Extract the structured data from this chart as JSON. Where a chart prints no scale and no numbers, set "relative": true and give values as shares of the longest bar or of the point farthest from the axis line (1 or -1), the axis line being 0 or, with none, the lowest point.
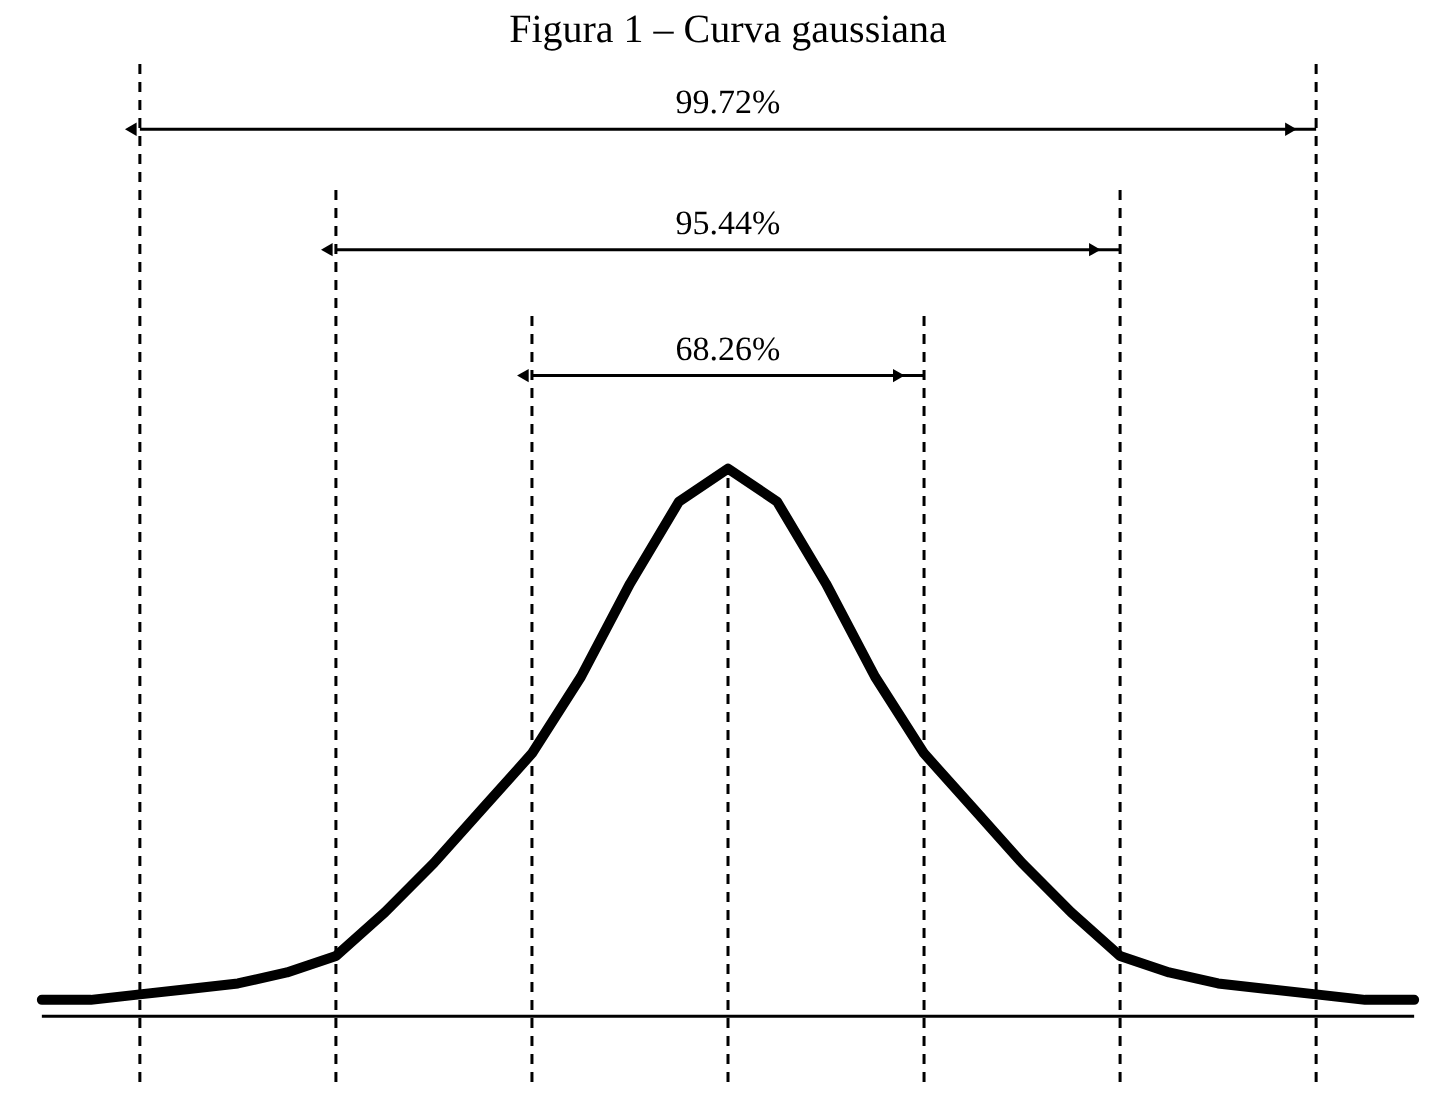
{
  "chart_data": {
    "type": "line",
    "title": "Figura 1 – Curva gaussiana",
    "relative": true,
    "grid": "x",
    "marker": "none",
    "line_style": "solid",
    "categories": [
      null,
      null,
      null,
      null,
      null,
      null,
      null,
      null,
      null,
      null,
      null,
      null,
      null,
      null,
      null,
      null,
      null,
      null,
      null,
      null,
      null,
      null,
      null,
      null,
      null,
      null,
      null,
      null,
      null
    ],
    "series": [
      {
        "color": "#000000",
        "values": [
          0.03,
          0.03,
          0.04,
          0.05,
          0.06,
          0.08,
          0.11,
          0.19,
          0.28,
          0.38,
          0.48,
          0.62,
          0.79,
          0.94,
          1,
          0.94,
          0.79,
          0.62,
          0.48,
          0.38,
          0.28,
          0.19,
          0.11,
          0.08,
          0.06,
          0.05,
          0.04,
          0.03,
          0.03
        ]
      }
    ],
    "annotations": [
      "99.72%",
      "95.44%",
      "68.26%"
    ]
  }
}
